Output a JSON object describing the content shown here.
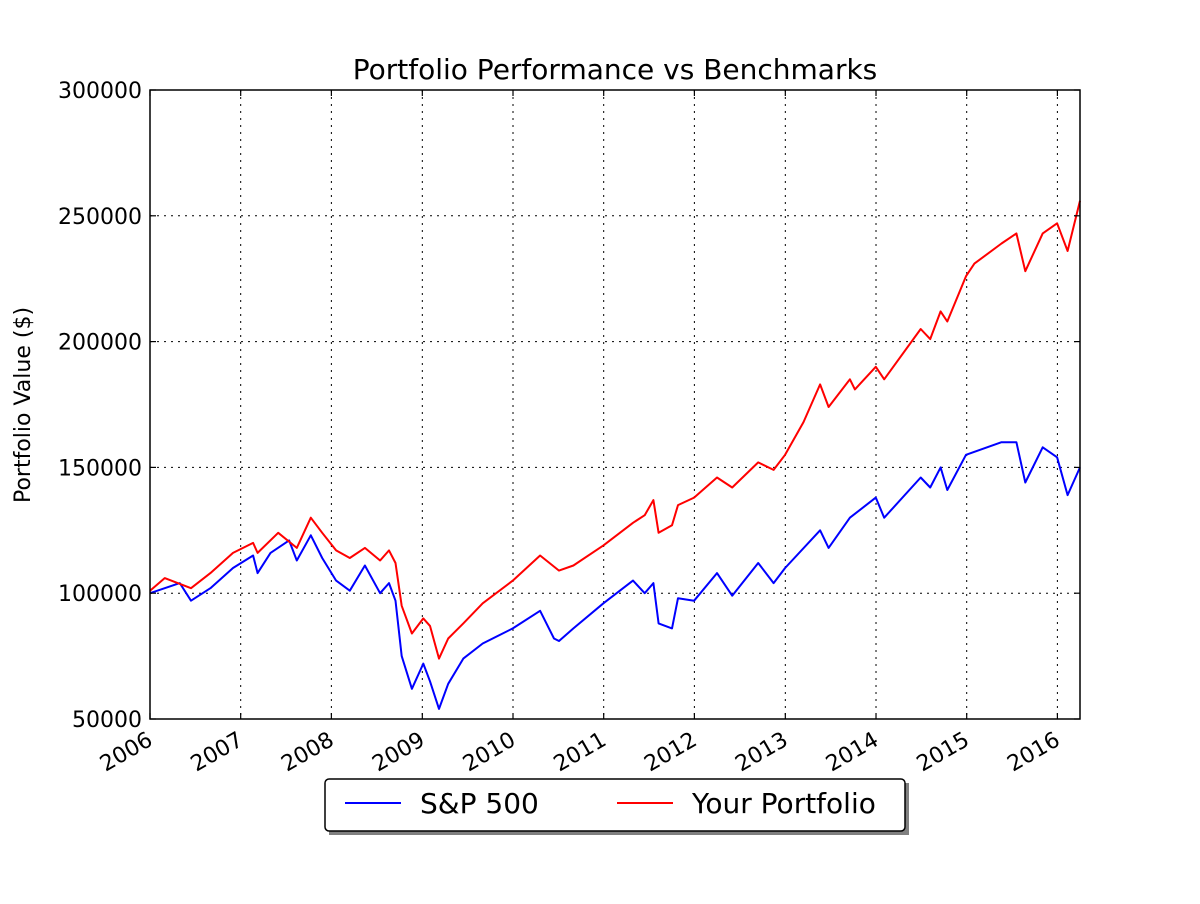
{
  "chart_data": {
    "type": "line",
    "title": "Portfolio Performance vs Benchmarks",
    "xlabel": "",
    "ylabel": "Portfolio Value ($)",
    "xlim": [
      "2006-01-01",
      "2016-04-01"
    ],
    "ylim": [
      50000,
      300000
    ],
    "x_ticks": [
      "2006",
      "2007",
      "2008",
      "2009",
      "2010",
      "2011",
      "2012",
      "2013",
      "2014",
      "2015",
      "2016"
    ],
    "y_ticks": [
      50000,
      100000,
      150000,
      200000,
      250000,
      300000
    ],
    "grid": true,
    "legend_position": "bottom-center-outside",
    "series": [
      {
        "name": "S&P 500",
        "color": "#0000ff",
        "points": [
          [
            "2006-01-01",
            100000
          ],
          [
            "2006-03-01",
            102000
          ],
          [
            "2006-05-01",
            104000
          ],
          [
            "2006-06-15",
            97000
          ],
          [
            "2006-09-01",
            102000
          ],
          [
            "2006-12-01",
            110000
          ],
          [
            "2007-02-20",
            115000
          ],
          [
            "2007-03-10",
            108000
          ],
          [
            "2007-05-01",
            116000
          ],
          [
            "2007-07-15",
            121000
          ],
          [
            "2007-08-15",
            113000
          ],
          [
            "2007-10-10",
            123000
          ],
          [
            "2007-11-25",
            114000
          ],
          [
            "2008-01-20",
            105000
          ],
          [
            "2008-03-15",
            101000
          ],
          [
            "2008-05-15",
            111000
          ],
          [
            "2008-07-15",
            100000
          ],
          [
            "2008-08-20",
            104000
          ],
          [
            "2008-09-15",
            97000
          ],
          [
            "2008-10-10",
            75000
          ],
          [
            "2008-11-20",
            62000
          ],
          [
            "2009-01-05",
            72000
          ],
          [
            "2009-02-01",
            65000
          ],
          [
            "2009-03-09",
            54000
          ],
          [
            "2009-04-15",
            64000
          ],
          [
            "2009-06-15",
            74000
          ],
          [
            "2009-09-01",
            80000
          ],
          [
            "2009-12-31",
            86000
          ],
          [
            "2010-04-20",
            93000
          ],
          [
            "2010-06-15",
            82000
          ],
          [
            "2010-07-05",
            81000
          ],
          [
            "2010-09-01",
            86000
          ],
          [
            "2010-12-31",
            96000
          ],
          [
            "2011-04-29",
            105000
          ],
          [
            "2011-06-15",
            100000
          ],
          [
            "2011-07-20",
            104000
          ],
          [
            "2011-08-10",
            88000
          ],
          [
            "2011-10-03",
            86000
          ],
          [
            "2011-10-27",
            98000
          ],
          [
            "2011-12-31",
            97000
          ],
          [
            "2012-04-01",
            108000
          ],
          [
            "2012-06-01",
            99000
          ],
          [
            "2012-09-14",
            112000
          ],
          [
            "2012-11-15",
            104000
          ],
          [
            "2012-12-31",
            110000
          ],
          [
            "2013-05-21",
            125000
          ],
          [
            "2013-06-24",
            118000
          ],
          [
            "2013-09-18",
            130000
          ],
          [
            "2013-12-31",
            138000
          ],
          [
            "2014-02-03",
            130000
          ],
          [
            "2014-06-30",
            146000
          ],
          [
            "2014-08-07",
            142000
          ],
          [
            "2014-09-18",
            150000
          ],
          [
            "2014-10-15",
            141000
          ],
          [
            "2014-12-29",
            155000
          ],
          [
            "2015-05-21",
            160000
          ],
          [
            "2015-07-20",
            160000
          ],
          [
            "2015-08-25",
            144000
          ],
          [
            "2015-11-03",
            158000
          ],
          [
            "2015-12-31",
            154000
          ],
          [
            "2016-02-11",
            139000
          ],
          [
            "2016-04-01",
            150000
          ]
        ]
      },
      {
        "name": "Your Portfolio",
        "color": "#ff0000",
        "points": [
          [
            "2006-01-01",
            101000
          ],
          [
            "2006-03-01",
            106000
          ],
          [
            "2006-06-15",
            102000
          ],
          [
            "2006-09-01",
            108000
          ],
          [
            "2006-12-01",
            116000
          ],
          [
            "2007-02-20",
            120000
          ],
          [
            "2007-03-10",
            116000
          ],
          [
            "2007-06-01",
            124000
          ],
          [
            "2007-08-15",
            118000
          ],
          [
            "2007-10-10",
            130000
          ],
          [
            "2007-11-25",
            124000
          ],
          [
            "2008-01-20",
            117000
          ],
          [
            "2008-03-15",
            114000
          ],
          [
            "2008-05-15",
            118000
          ],
          [
            "2008-07-15",
            113000
          ],
          [
            "2008-08-20",
            117000
          ],
          [
            "2008-09-15",
            112000
          ],
          [
            "2008-10-10",
            95000
          ],
          [
            "2008-11-20",
            84000
          ],
          [
            "2009-01-05",
            90000
          ],
          [
            "2009-02-01",
            87000
          ],
          [
            "2009-03-09",
            74000
          ],
          [
            "2009-04-15",
            82000
          ],
          [
            "2009-06-15",
            88000
          ],
          [
            "2009-09-01",
            96000
          ],
          [
            "2009-12-31",
            105000
          ],
          [
            "2010-04-20",
            115000
          ],
          [
            "2010-07-05",
            109000
          ],
          [
            "2010-09-01",
            111000
          ],
          [
            "2010-12-31",
            119000
          ],
          [
            "2011-04-29",
            128000
          ],
          [
            "2011-06-15",
            131000
          ],
          [
            "2011-07-20",
            137000
          ],
          [
            "2011-08-10",
            124000
          ],
          [
            "2011-10-03",
            127000
          ],
          [
            "2011-10-27",
            135000
          ],
          [
            "2011-12-31",
            138000
          ],
          [
            "2012-04-01",
            146000
          ],
          [
            "2012-06-01",
            142000
          ],
          [
            "2012-09-14",
            152000
          ],
          [
            "2012-11-15",
            149000
          ],
          [
            "2012-12-31",
            155000
          ],
          [
            "2013-03-15",
            168000
          ],
          [
            "2013-05-21",
            183000
          ],
          [
            "2013-06-24",
            174000
          ],
          [
            "2013-09-18",
            185000
          ],
          [
            "2013-10-08",
            181000
          ],
          [
            "2013-12-31",
            190000
          ],
          [
            "2014-02-03",
            185000
          ],
          [
            "2014-06-30",
            205000
          ],
          [
            "2014-08-07",
            201000
          ],
          [
            "2014-09-18",
            212000
          ],
          [
            "2014-10-15",
            208000
          ],
          [
            "2014-12-29",
            226000
          ],
          [
            "2015-02-01",
            231000
          ],
          [
            "2015-05-21",
            239000
          ],
          [
            "2015-07-20",
            243000
          ],
          [
            "2015-08-25",
            228000
          ],
          [
            "2015-11-03",
            243000
          ],
          [
            "2015-12-31",
            247000
          ],
          [
            "2016-02-11",
            236000
          ],
          [
            "2016-04-01",
            256000
          ]
        ]
      }
    ]
  }
}
